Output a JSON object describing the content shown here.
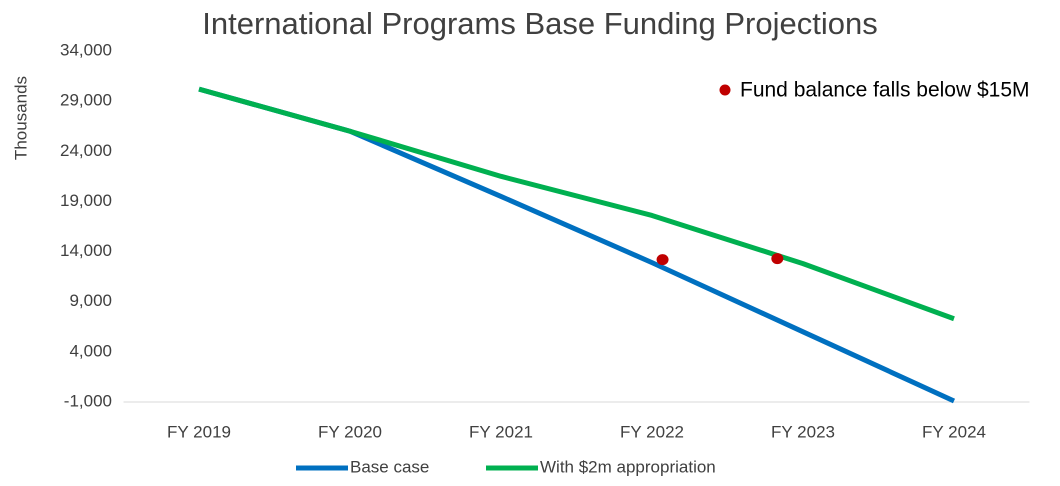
{
  "chart_data": {
    "type": "line",
    "title": "International Programs Base Funding Projections",
    "y_label": "Thousands",
    "categories": [
      "FY 2019",
      "FY 2020",
      "FY 2021",
      "FY 2022",
      "FY 2023",
      "FY 2024"
    ],
    "series": [
      {
        "name": "Base case",
        "color": "#0070c0",
        "values": [
          30200,
          26000,
          19500,
          12900,
          6000,
          -900
        ]
      },
      {
        "name": "With $2m appropriation",
        "color": "#00b050",
        "values": [
          30200,
          26000,
          21500,
          17600,
          12800,
          7300
        ]
      }
    ],
    "markers": {
      "name": "Fund balance falls below $15M",
      "color": "#c00000",
      "points": [
        {
          "x": 3.07,
          "y": 13200
        },
        {
          "x": 3.83,
          "y": 13300
        }
      ]
    },
    "ylim": [
      -1000,
      34000
    ],
    "yticks": [
      {
        "value": -1000,
        "label": "-1,000"
      },
      {
        "value": 4000,
        "label": "4,000"
      },
      {
        "value": 9000,
        "label": "9,000"
      },
      {
        "value": 14000,
        "label": "14,000"
      },
      {
        "value": 19000,
        "label": "19,000"
      },
      {
        "value": 24000,
        "label": "24,000"
      },
      {
        "value": 29000,
        "label": "29,000"
      },
      {
        "value": 34000,
        "label": "34,000"
      }
    ],
    "grid": false,
    "legend": "bottom"
  }
}
